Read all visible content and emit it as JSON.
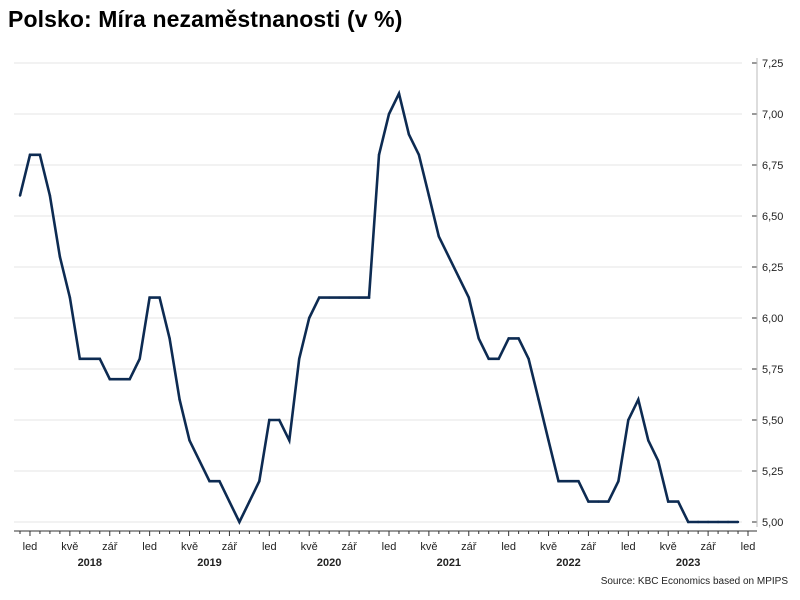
{
  "title": "Polsko: Míra nezaměstnanosti (v %)",
  "source": "Source: KBC Economics based on MPIPS",
  "colors": {
    "line": "#0d2b52",
    "grid": "#e6e6e6",
    "axis": "#333333"
  },
  "chart_data": {
    "type": "line",
    "title": "Polsko: Míra nezaměstnanosti (v %)",
    "xlabel": "",
    "ylabel": "",
    "ylim": [
      5.0,
      7.25
    ],
    "y_ticks": [
      "7,25",
      "7,00",
      "6,75",
      "6,50",
      "6,25",
      "6,00",
      "5,75",
      "5,50",
      "5,25",
      "5,00"
    ],
    "y_tick_values": [
      7.25,
      7.0,
      6.75,
      6.5,
      6.25,
      6.0,
      5.75,
      5.5,
      5.25,
      5.0
    ],
    "grid": "horizontal",
    "x_start": "2017-12",
    "x_end": "2024-01",
    "x_tick_labels": [
      "led",
      "kvě",
      "zář",
      "led",
      "kvě",
      "zář",
      "led",
      "kvě",
      "zář",
      "led",
      "kvě",
      "zář",
      "led",
      "kvě",
      "zář",
      "led",
      "kvě",
      "zář",
      "led"
    ],
    "x_tick_dates": [
      "2018-01",
      "2018-05",
      "2018-09",
      "2019-01",
      "2019-05",
      "2019-09",
      "2020-01",
      "2020-05",
      "2020-09",
      "2021-01",
      "2021-05",
      "2021-09",
      "2022-01",
      "2022-05",
      "2022-09",
      "2023-01",
      "2023-05",
      "2023-09",
      "2024-01"
    ],
    "year_labels": [
      "2018",
      "2019",
      "2020",
      "2021",
      "2022",
      "2023"
    ],
    "year_label_dates": [
      "2018-07",
      "2019-07",
      "2020-07",
      "2021-07",
      "2022-07",
      "2023-07"
    ],
    "series": [
      {
        "x": [
          "2017-12",
          "2018-01",
          "2018-02",
          "2018-03",
          "2018-04",
          "2018-05",
          "2018-06",
          "2018-07",
          "2018-08",
          "2018-09",
          "2018-10",
          "2018-11",
          "2018-12",
          "2019-01",
          "2019-02",
          "2019-03",
          "2019-04",
          "2019-05",
          "2019-06",
          "2019-07",
          "2019-08",
          "2019-09",
          "2019-10",
          "2019-11",
          "2019-12",
          "2020-01",
          "2020-02",
          "2020-03",
          "2020-04",
          "2020-05",
          "2020-06",
          "2020-07",
          "2020-08",
          "2020-09",
          "2020-10",
          "2020-11",
          "2020-12",
          "2021-01",
          "2021-02",
          "2021-03",
          "2021-04",
          "2021-05",
          "2021-06",
          "2021-07",
          "2021-08",
          "2021-09",
          "2021-10",
          "2021-11",
          "2021-12",
          "2022-01",
          "2022-02",
          "2022-03",
          "2022-04",
          "2022-05",
          "2022-06",
          "2022-07",
          "2022-08",
          "2022-09",
          "2022-10",
          "2022-11",
          "2022-12",
          "2023-01",
          "2023-02",
          "2023-03",
          "2023-04",
          "2023-05",
          "2023-06",
          "2023-07",
          "2023-08",
          "2023-09",
          "2023-10",
          "2023-11",
          "2023-12"
        ],
        "values": [
          6.6,
          6.8,
          6.8,
          6.6,
          6.3,
          6.1,
          5.8,
          5.8,
          5.8,
          5.7,
          5.7,
          5.7,
          5.8,
          6.1,
          6.1,
          5.9,
          5.6,
          5.4,
          5.3,
          5.2,
          5.2,
          5.1,
          5.0,
          5.1,
          5.2,
          5.5,
          5.5,
          5.4,
          5.8,
          6.0,
          6.1,
          6.1,
          6.1,
          6.1,
          6.1,
          6.1,
          6.8,
          7.0,
          7.1,
          6.9,
          6.8,
          6.6,
          6.4,
          6.3,
          6.2,
          6.1,
          5.9,
          5.8,
          5.8,
          5.9,
          5.9,
          5.8,
          5.6,
          5.4,
          5.2,
          5.2,
          5.2,
          5.1,
          5.1,
          5.1,
          5.2,
          5.5,
          5.6,
          5.4,
          5.3,
          5.1,
          5.1,
          5.0,
          5.0,
          5.0,
          5.0,
          5.0,
          5.0
        ]
      }
    ]
  }
}
